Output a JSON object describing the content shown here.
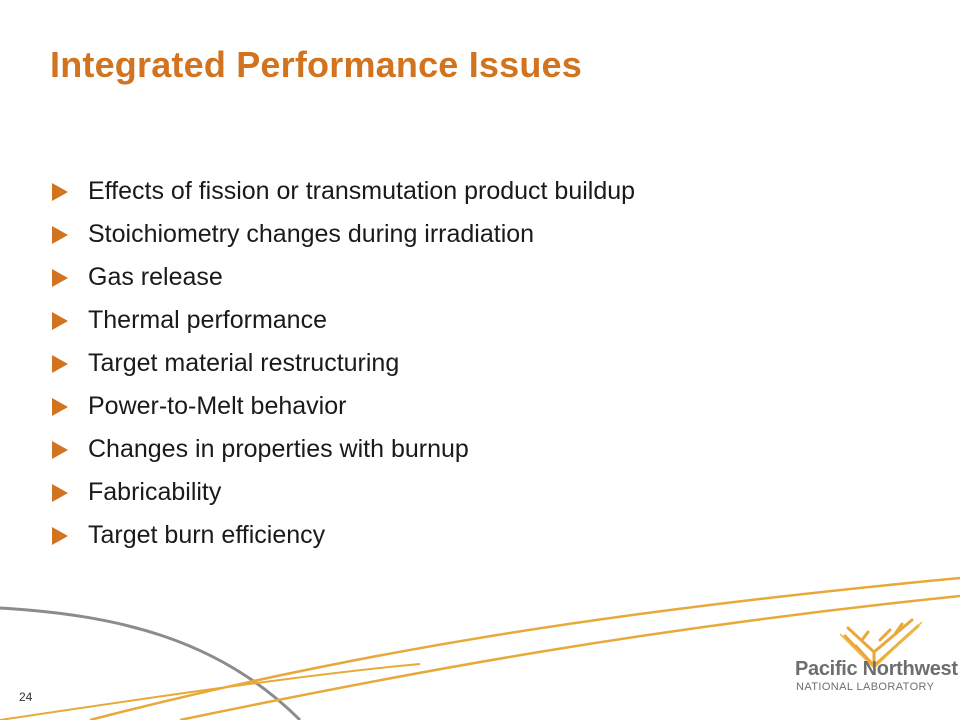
{
  "slide": {
    "title": "Integrated Performance Issues",
    "bullets": [
      "Effects of fission or transmutation product buildup",
      "Stoichiometry changes during irradiation",
      "Gas release",
      "Thermal performance",
      "Target material restructuring",
      "Power-to-Melt behavior",
      "Changes in properties with burnup",
      "Fabricability",
      "Target burn efficiency"
    ],
    "page_number": "24"
  },
  "logo": {
    "name": "Pacific Northwest",
    "subtitle": "NATIONAL LABORATORY",
    "icon": "pnnl-logo-icon"
  },
  "colors": {
    "accent": "#d2741f",
    "text": "#1a1a1a",
    "logo_gray": "#6d6e70",
    "swoosh_gray": "#8c8c8c",
    "swoosh_gold": "#e8a93a"
  }
}
